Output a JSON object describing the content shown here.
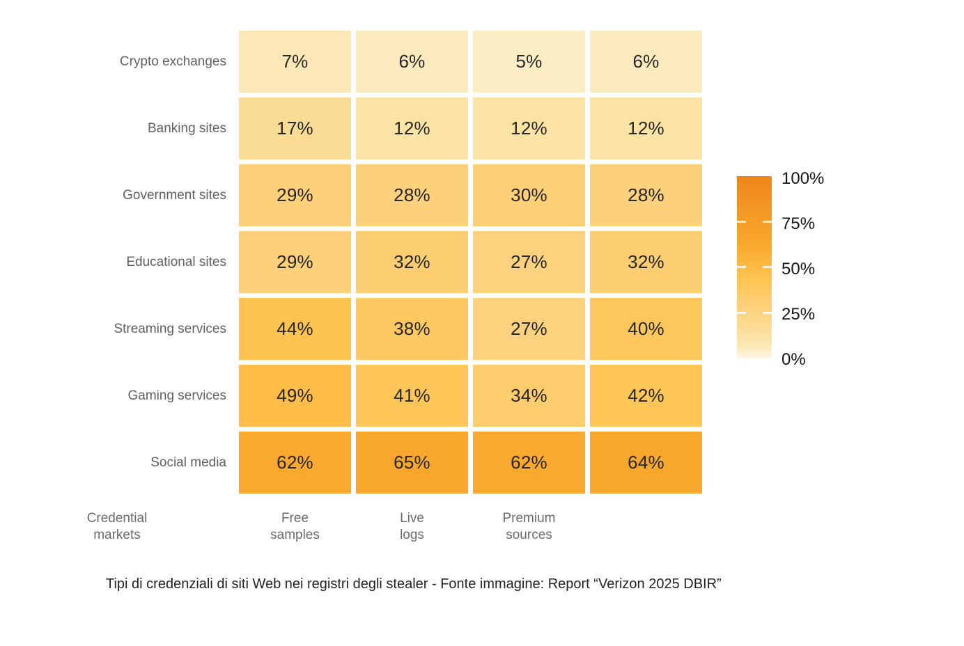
{
  "chart_data": {
    "type": "heatmap",
    "rows": [
      "Crypto exchanges",
      "Banking sites",
      "Government sites",
      "Educational sites",
      "Streaming services",
      "Gaming services",
      "Social media"
    ],
    "columns": [
      "Credential\nmarkets",
      "Free\nsamples",
      "Live\nlogs",
      "Premium\nsources"
    ],
    "values": [
      [
        7,
        6,
        5,
        6
      ],
      [
        17,
        12,
        12,
        12
      ],
      [
        29,
        28,
        30,
        28
      ],
      [
        29,
        32,
        27,
        32
      ],
      [
        44,
        38,
        27,
        40
      ],
      [
        49,
        41,
        34,
        42
      ],
      [
        62,
        65,
        62,
        64
      ]
    ],
    "unit": "%",
    "value_range": [
      0,
      100
    ],
    "legend": {
      "position": "right",
      "ticks": [
        "100%",
        "75%",
        "50%",
        "25%",
        "0%"
      ]
    },
    "colormap_stops": [
      [
        0,
        "#FEF8E9"
      ],
      [
        7,
        "#FBE8B6"
      ],
      [
        17,
        "#FBDC94"
      ],
      [
        30,
        "#FDCF77"
      ],
      [
        44,
        "#FEC450"
      ],
      [
        62,
        "#F9A92E"
      ],
      [
        100,
        "#EE861A"
      ]
    ]
  },
  "caption": "Tipi di credenziali di siti Web nei registri degli stealer - Fonte immagine: Report “Verizon 2025 DBIR”"
}
